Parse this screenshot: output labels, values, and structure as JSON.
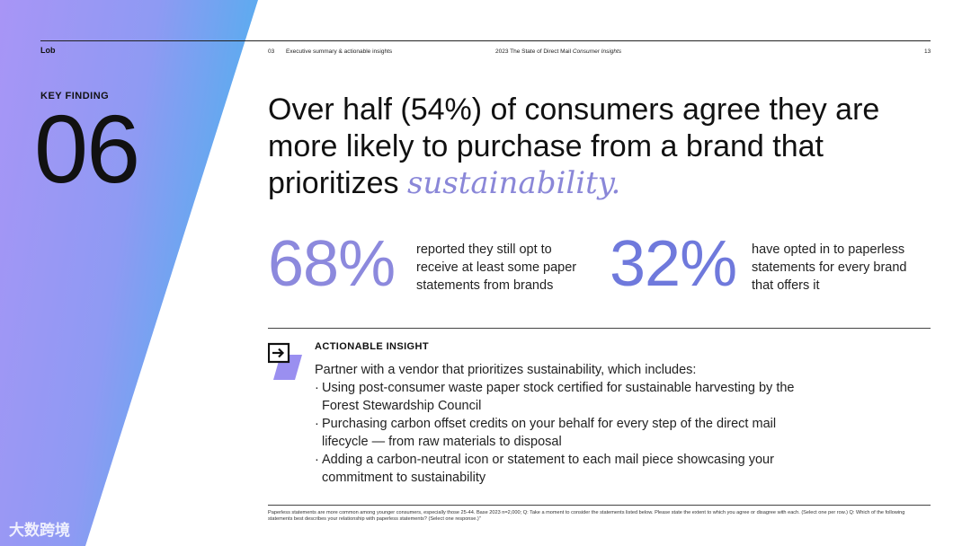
{
  "header": {
    "logo": "Lob",
    "section_number": "03",
    "section_title": "Executive summary & actionable insights",
    "report_title": "2023 The State of Direct Mail",
    "report_subtitle": "Consumer Insights",
    "page_number": "13"
  },
  "key_finding": {
    "label": "KEY FINDING",
    "number": "06"
  },
  "headline": {
    "main": "Over half (54%) of consumers agree they are more likely to purchase from a brand that prioritizes",
    "emphasis": "sustainability."
  },
  "stats": [
    {
      "value": "68%",
      "text": "reported they still opt to receive at least some paper statements from brands"
    },
    {
      "value": "32%",
      "text": "have opted in to paperless statements for every brand that offers it"
    }
  ],
  "insight": {
    "label": "ACTIONABLE INSIGHT",
    "intro": "Partner with a vendor that prioritizes sustainability, which includes:",
    "bullets": [
      "Using post-consumer waste paper stock certified for sustainable harvesting by the Forest Stewardship Council",
      "Purchasing carbon offset credits on your behalf for every step of the direct mail lifecycle — from raw materials to disposal",
      "Adding a carbon-neutral icon or statement to each mail piece showcasing your commitment to sustainability"
    ]
  },
  "footnote": "Paperless statements are more common among younger consumers, especially those 25-44. Base 2023 n=2,000; Q: Take a moment to consider the statements listed below. Please state the extent to which you agree or disagree with each. (Select one per row.) Q: Which of the following statements best describes your relationship with paperless statements? (Select one response.)\"",
  "watermark": "大数跨境",
  "colors": {
    "gradient_top": "#a592f5",
    "gradient_bottom": "#5aa6ee",
    "stat1": "#8c89dd",
    "stat2": "#6f79dc",
    "emphasis": "#8a87d8"
  },
  "icons": {
    "insight": "arrow-into-box-icon"
  }
}
